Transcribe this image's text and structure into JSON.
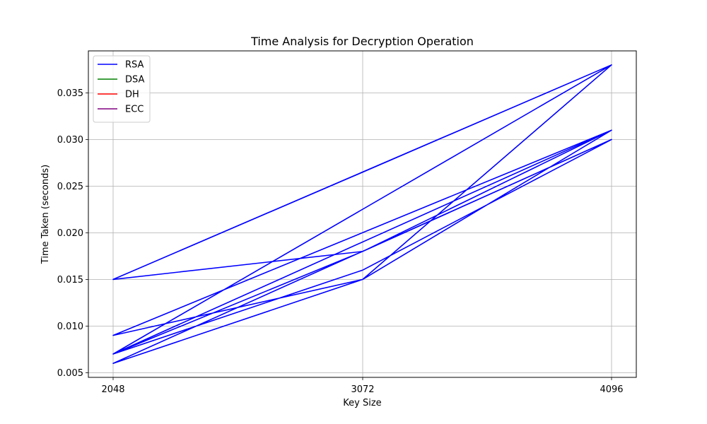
{
  "chart_data": {
    "type": "line",
    "title": "Time Analysis for Decryption Operation",
    "xlabel": "Key Size",
    "ylabel": "Time Taken (seconds)",
    "x_categories": [
      "2048",
      "3072",
      "4096"
    ],
    "ylim": [
      0.0045,
      0.0395
    ],
    "yticks": [
      0.005,
      0.01,
      0.015,
      0.02,
      0.025,
      0.03,
      0.035
    ],
    "ytick_labels": [
      "0.005",
      "0.010",
      "0.015",
      "0.020",
      "0.025",
      "0.030",
      "0.035"
    ],
    "grid": true,
    "legend": {
      "placement": "top-left",
      "entries": [
        {
          "name": "RSA",
          "color": "#0000ff"
        },
        {
          "name": "DSA",
          "color": "#008000"
        },
        {
          "name": "DH",
          "color": "#ff0000"
        },
        {
          "name": "ECC",
          "color": "#800080"
        }
      ]
    },
    "series": [
      {
        "name": "RSA",
        "color": "#0000ff",
        "x": [
          "2048",
          "3072",
          "4096",
          "2048",
          "3072",
          "4096",
          "2048",
          "3072",
          "4096",
          "2048",
          "3072",
          "4096",
          "2048",
          "3072",
          "4096",
          "2048",
          "3072",
          "4096"
        ],
        "values": [
          0.015,
          0.018,
          0.031,
          0.007,
          0.016,
          0.03,
          0.006,
          0.015,
          0.031,
          0.009,
          0.015,
          0.038,
          0.015,
          0.0265,
          0.038,
          0.007,
          0.018,
          0.03
        ]
      }
    ]
  }
}
